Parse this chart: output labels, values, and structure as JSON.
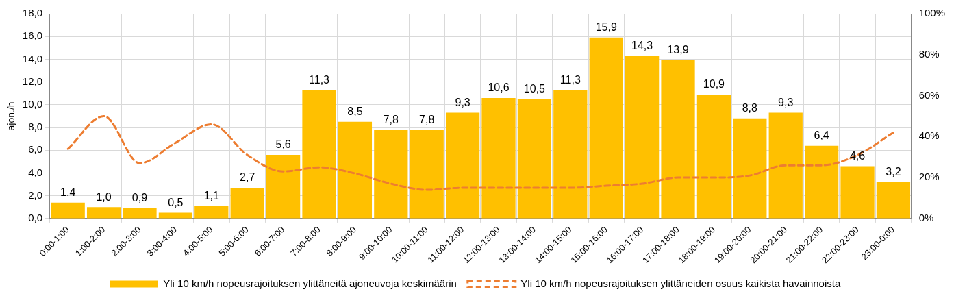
{
  "chart_data": {
    "type": "bar",
    "ylabel": "ajon./h",
    "categories": [
      "0:00-1:00",
      "1:00-2:00",
      "2:00-3:00",
      "3:00-4:00",
      "4:00-5:00",
      "5:00-6:00",
      "6:00-7:00",
      "7:00-8:00",
      "8:00-9:00",
      "9:00-10:00",
      "10:00-11:00",
      "11:00-12:00",
      "12:00-13:00",
      "13:00-14:00",
      "14:00-15:00",
      "15:00-16:00",
      "16:00-17:00",
      "17:00-18:00",
      "18:00-19:00",
      "19:00-20:00",
      "20:00-21:00",
      "21:00-22:00",
      "22:00-23:00",
      "23:00-0:00"
    ],
    "series": [
      {
        "name": "Yli 10 km/h nopeusrajoituksen ylittäneitä ajoneuvoja keskimäärin",
        "color": "#ffc000",
        "values": [
          1.4,
          1.0,
          0.9,
          0.5,
          1.1,
          2.7,
          5.6,
          11.3,
          8.5,
          7.8,
          7.8,
          9.3,
          10.6,
          10.5,
          11.3,
          15.9,
          14.3,
          13.9,
          10.9,
          8.8,
          9.3,
          6.4,
          4.6,
          3.2
        ],
        "value_labels": [
          "1,4",
          "1,0",
          "0,9",
          "0,5",
          "1,1",
          "2,7",
          "5,6",
          "11,3",
          "8,5",
          "7,8",
          "7,8",
          "9,3",
          "10,6",
          "10,5",
          "11,3",
          "15,9",
          "14,3",
          "13,9",
          "10,9",
          "8,8",
          "9,3",
          "6,4",
          "4,6",
          "3,2"
        ]
      },
      {
        "type": "line",
        "axis": "y2",
        "line_style": "dashed",
        "marker": "none",
        "name": "Yli 10 km/h nopeusrajoituksen ylittäneiden osuus kaikista havainnoista",
        "color": "#ed7d31",
        "values": [
          34,
          50,
          27,
          37,
          46,
          31,
          23,
          25,
          22,
          17,
          14,
          15,
          15,
          15,
          15,
          16,
          17,
          20,
          20,
          21,
          26,
          26,
          31,
          42
        ]
      }
    ],
    "ylim": [
      0,
      18
    ],
    "yticks": [
      {
        "value": 0,
        "label": "0,0"
      },
      {
        "value": 2,
        "label": "2,0"
      },
      {
        "value": 4,
        "label": "4,0"
      },
      {
        "value": 6,
        "label": "6,0"
      },
      {
        "value": 8,
        "label": "8,0"
      },
      {
        "value": 10,
        "label": "10,0"
      },
      {
        "value": 12,
        "label": "12,0"
      },
      {
        "value": 14,
        "label": "14,0"
      },
      {
        "value": 16,
        "label": "16,0"
      },
      {
        "value": 18,
        "label": "18,0"
      }
    ],
    "y2lim": [
      0,
      100
    ],
    "y2ticks": [
      {
        "value": 0,
        "label": "0%"
      },
      {
        "value": 20,
        "label": "20%"
      },
      {
        "value": 40,
        "label": "40%"
      },
      {
        "value": 60,
        "label": "60%"
      },
      {
        "value": 80,
        "label": "80%"
      },
      {
        "value": 100,
        "label": "100%"
      }
    ],
    "grid": true,
    "legend": "bottom"
  }
}
